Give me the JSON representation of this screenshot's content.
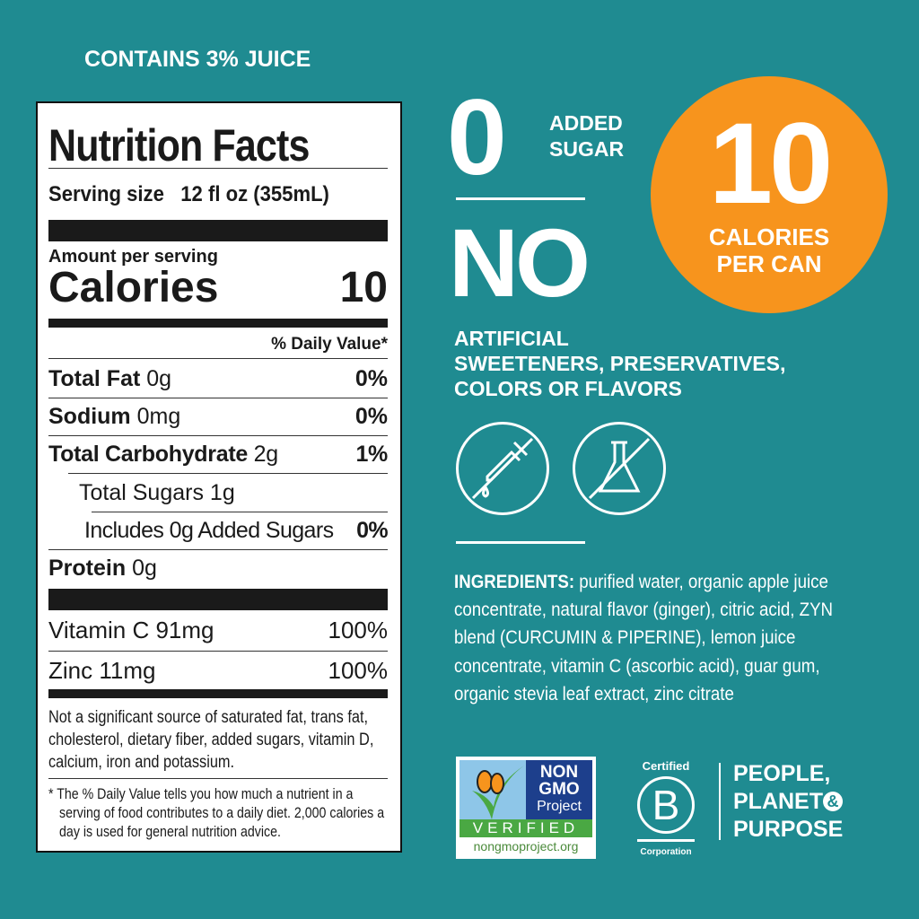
{
  "top_note": "CONTAINS 3% JUICE",
  "label": {
    "title": "Nutrition Facts",
    "serving_label": "Serving size",
    "serving_value": "12 fl oz (355mL)",
    "amount_per_serving": "Amount per serving",
    "calories_label": "Calories",
    "calories_value": "10",
    "dv_header": "% Daily Value*",
    "rows": [
      {
        "name": "Total Fat",
        "amount": "0g",
        "dv": "0%"
      },
      {
        "name": "Sodium",
        "amount": "0mg",
        "dv": "0%"
      },
      {
        "name": "Total Carbohydrate",
        "amount": "2g",
        "dv": "1%"
      },
      {
        "name": "Total Sugars 1g",
        "amount": "",
        "dv": ""
      },
      {
        "name": "Includes 0g Added Sugars",
        "amount": "",
        "dv": "0%"
      },
      {
        "name": "Protein",
        "amount": "0g",
        "dv": ""
      }
    ],
    "vitamins": [
      {
        "name": "Vitamin C 91mg",
        "dv": "100%"
      },
      {
        "name": "Zinc 11mg",
        "dv": "100%"
      }
    ],
    "not_significant": "Not a significant source of saturated fat, trans fat, cholesterol, dietary fiber, added sugars, vitamin D, calcium, iron and potassium.",
    "footnote": "* The % Daily Value tells you how much a nutrient in a serving of food contributes to a daily diet. 2,000 calories a day is used for general nutrition advice."
  },
  "claims": {
    "zero": "0",
    "added_sugar_1": "ADDED",
    "added_sugar_2": "SUGAR",
    "no": "NO",
    "artificial_1": "ARTIFICIAL",
    "artificial_2": "SWEETENERS, PRESERVATIVES,",
    "artificial_3": "COLORS OR FLAVORS",
    "cal_big": "10",
    "cal_1": "CALORIES",
    "cal_2": "PER CAN"
  },
  "ingredients": {
    "label": "INGREDIENTS:",
    "text": " purified water, organic apple juice concentrate, natural flavor (ginger), citric acid, ZYN blend (CURCUMIN & PIPERINE), lemon juice concentrate, vitamin C (ascorbic acid), guar gum, organic stevia leaf extract, zinc citrate"
  },
  "logos": {
    "nongmo": {
      "l1": "NON",
      "l2": "GMO",
      "l3": "Project",
      "verified": "VERIFIED",
      "url": "nongmoproject.org"
    },
    "bcorp": {
      "top": "Certified",
      "letter": "B",
      "bottom": "Corporation"
    },
    "ppp": {
      "l1": "PEOPLE,",
      "l2": "PLANET",
      "amp": "&",
      "l3": "PURPOSE"
    }
  },
  "colors": {
    "background": "#1f8b91",
    "orange": "#f7941d",
    "nongmo_blue": "#1d3f8c",
    "nongmo_green": "#4aa843"
  }
}
